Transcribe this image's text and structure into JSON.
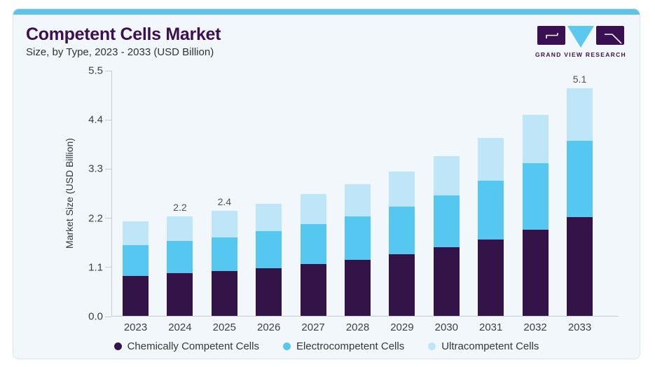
{
  "header": {
    "title": "Competent Cells Market",
    "subtitle": "Size, by Type, 2023 - 2033 (USD Billion)"
  },
  "logo": {
    "caption": "GRAND VIEW RESEARCH"
  },
  "colors": {
    "accent_bar": "#60c2e9",
    "card_background": "#f2f7fb",
    "card_border": "#d9e3ec",
    "title_purple": "#3b1053",
    "axis_gray": "#c6cdd4",
    "label_gray": "#3c4043"
  },
  "chart_data": {
    "type": "bar",
    "stacked": true,
    "title": "Competent Cells Market Size, by Type, 2023 - 2033 (USD Billion)",
    "categories": [
      "2023",
      "2024",
      "2025",
      "2026",
      "2027",
      "2028",
      "2029",
      "2030",
      "2031",
      "2032",
      "2033"
    ],
    "series": [
      {
        "name": "Chemically Competent Cells",
        "color": "#341349",
        "values": [
          0.89,
          0.95,
          1.01,
          1.07,
          1.16,
          1.26,
          1.38,
          1.54,
          1.71,
          1.93,
          2.21
        ]
      },
      {
        "name": "Electrocompetent Cells",
        "color": "#56c7f0",
        "values": [
          0.69,
          0.72,
          0.75,
          0.82,
          0.89,
          0.96,
          1.06,
          1.16,
          1.32,
          1.48,
          1.7
        ]
      },
      {
        "name": "Ultracompetent Cells",
        "color": "#bfe5f8",
        "values": [
          0.53,
          0.56,
          0.59,
          0.62,
          0.67,
          0.73,
          0.79,
          0.87,
          0.95,
          1.09,
          1.19
        ]
      }
    ],
    "totals": [
      2.11,
      2.23,
      2.35,
      2.51,
      2.72,
      2.95,
      3.23,
      3.57,
      3.98,
      4.5,
      5.1
    ],
    "total_labels": [
      "",
      "2.2",
      "2.4",
      "",
      "",
      "",
      "",
      "",
      "",
      "",
      "5.1"
    ],
    "ylabel": "Market Size (USD Billion)",
    "yticks": [
      "0.0",
      "1.1",
      "2.2",
      "3.3",
      "4.4",
      "5.5"
    ],
    "ylim": [
      0,
      5.5
    ],
    "grid": false,
    "legend_position": "bottom"
  }
}
